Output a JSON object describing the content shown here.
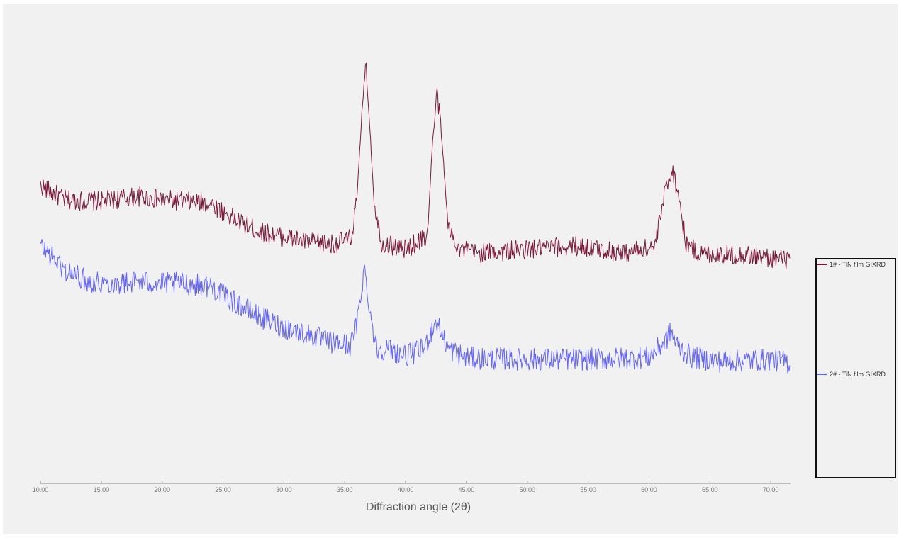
{
  "chart_data": {
    "type": "line",
    "title": "",
    "xlabel": "Diffraction angle (2θ)",
    "ylabel": "",
    "xlim": [
      10.0,
      71.6
    ],
    "x_ticks": [
      "10.00",
      "15.00",
      "20.00",
      "25.00",
      "30.00",
      "35.00",
      "40.00",
      "45.00",
      "50.00",
      "55.00",
      "60.00",
      "65.00",
      "70.00"
    ],
    "y_ticks_visible": false,
    "grid": false,
    "legend_position": "right",
    "intensity_units": "relative (arbitrary, no y-axis shown)",
    "series": [
      {
        "name": "1# - TiN film GIXRD",
        "color": "#7b1a3a",
        "noise": 14,
        "x": [
          10,
          12,
          15,
          18,
          20,
          22,
          24,
          26,
          28,
          30,
          32,
          34,
          35.5,
          36.0,
          36.4,
          36.7,
          37.0,
          37.4,
          38.0,
          40,
          41.8,
          42.2,
          42.6,
          43.0,
          43.5,
          44.5,
          46,
          50,
          54,
          58,
          60.5,
          61.4,
          61.9,
          62.4,
          63.0,
          64,
          68,
          71.6
        ],
        "values": [
          420,
          400,
          398,
          405,
          400,
          398,
          395,
          372,
          355,
          348,
          340,
          338,
          345,
          400,
          520,
          594,
          520,
          400,
          340,
          330,
          350,
          480,
          552,
          480,
          360,
          330,
          325,
          330,
          335,
          325,
          335,
          420,
          444,
          410,
          340,
          325,
          322,
          315
        ]
      },
      {
        "name": "2# - TiN film GIXRD",
        "color": "#6666ee",
        "noise": 16,
        "x": [
          10,
          11,
          12,
          14,
          16,
          18,
          20,
          22,
          24,
          26,
          28,
          30,
          32,
          34,
          35.5,
          36.0,
          36.6,
          37.1,
          37.6,
          38.5,
          40,
          41.5,
          42.5,
          43.5,
          45,
          50,
          55,
          60,
          61.3,
          61.8,
          62.3,
          63.5,
          66,
          70,
          71.6
        ],
        "values": [
          335,
          320,
          300,
          285,
          282,
          285,
          282,
          282,
          278,
          255,
          235,
          220,
          210,
          198,
          195,
          225,
          304,
          240,
          190,
          190,
          180,
          190,
          230,
          190,
          177,
          175,
          175,
          178,
          200,
          214,
          195,
          178,
          172,
          175,
          170
        ]
      }
    ]
  },
  "legend": {
    "items": [
      {
        "label": "1# - TiN film GIXRD",
        "color": "#7b1a3a"
      },
      {
        "label": "2# - TiN film GIXRD",
        "color": "#6666ee"
      }
    ]
  },
  "axis": {
    "xlabel": "Diffraction angle (2θ)"
  }
}
